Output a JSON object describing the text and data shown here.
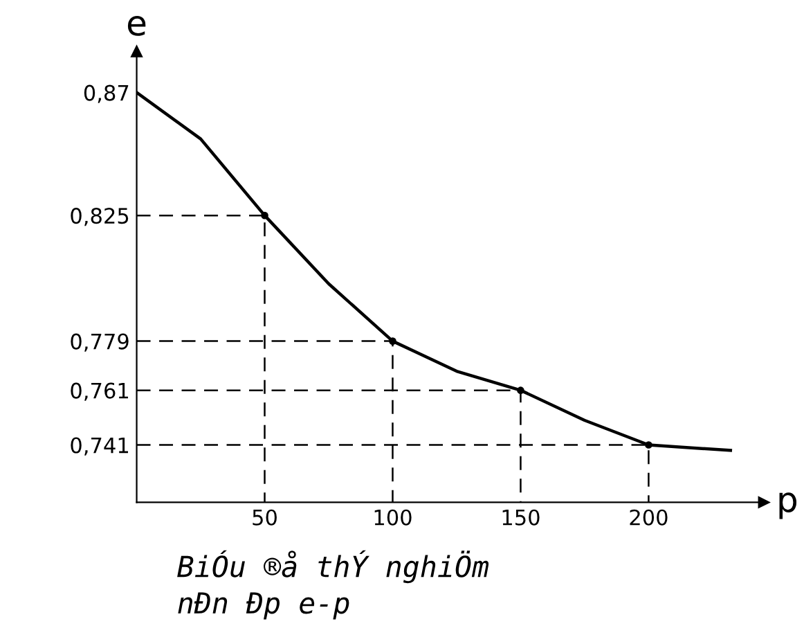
{
  "chart_data": {
    "type": "line",
    "xlabel": "p",
    "ylabel": "e",
    "x": [
      0,
      25,
      50,
      75,
      100,
      125,
      150,
      175,
      200,
      232
    ],
    "series": [
      {
        "color": "#000000",
        "values": [
          0.87,
          0.853,
          0.825,
          0.8,
          0.779,
          0.768,
          0.761,
          0.75,
          0.741,
          0.739
        ]
      },
      {
        "type": "scatter",
        "color": "#000000",
        "x": [
          50,
          100,
          150,
          200
        ],
        "values": [
          0.825,
          0.779,
          0.761,
          0.741
        ]
      },
      {
        "line_style": "dashed",
        "color": "#000000",
        "x": [
          0,
          50,
          50
        ],
        "values": [
          0.825,
          0.825,
          0.72
        ]
      },
      {
        "line_style": "dashed",
        "color": "#000000",
        "x": [
          0,
          100,
          100
        ],
        "values": [
          0.779,
          0.779,
          0.72
        ]
      },
      {
        "line_style": "dashed",
        "color": "#000000",
        "x": [
          0,
          150,
          150
        ],
        "values": [
          0.761,
          0.761,
          0.72
        ]
      },
      {
        "line_style": "dashed",
        "color": "#000000",
        "x": [
          0,
          200,
          200
        ],
        "values": [
          0.741,
          0.741,
          0.72
        ]
      }
    ],
    "xlim": [
      0,
      245
    ],
    "ylim": [
      0.72,
      0.885
    ],
    "xticks": [
      50,
      100,
      150,
      200
    ],
    "yticks": [
      {
        "value": 0.87,
        "label": "0,87"
      },
      {
        "value": 0.825,
        "label": "0,825"
      },
      {
        "value": 0.779,
        "label": "0,779"
      },
      {
        "value": 0.761,
        "label": "0,761"
      },
      {
        "value": 0.741,
        "label": "0,741"
      }
    ],
    "annotations": [
      "BiÓu ®å thÝ nghiÖm",
      "nÐn Ðp e-p"
    ]
  }
}
